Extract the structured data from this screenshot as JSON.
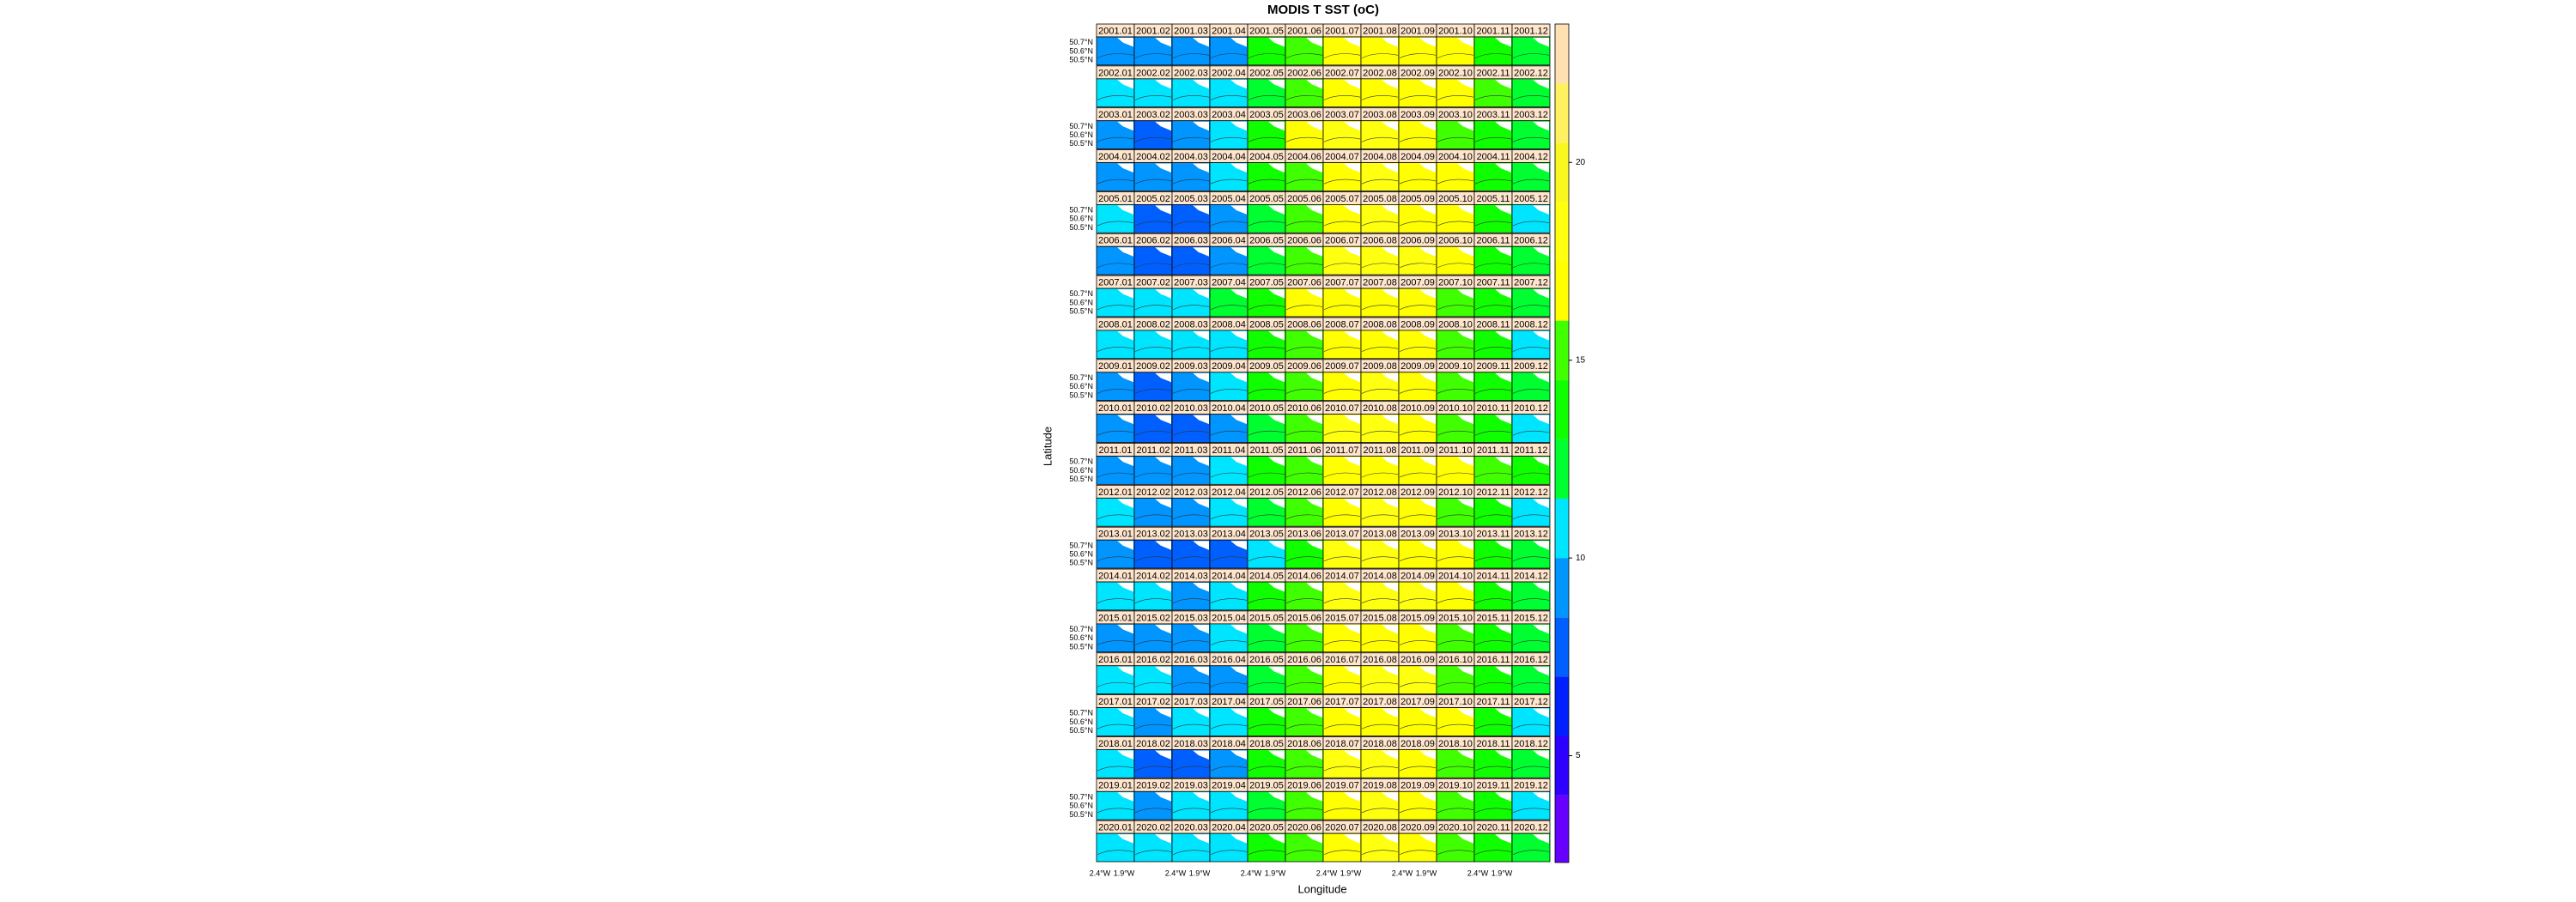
{
  "chart_data": {
    "type": "lattice",
    "title": "MODIS T SST (oC)",
    "x_label": "Longitude",
    "y_label": "Latitude",
    "lat_labels": [
      "50.7°N",
      "50.6°N",
      "50.5°N"
    ],
    "lon_labels": [
      "2.4°W",
      "1.9°W"
    ],
    "zlim": [
      2.3,
      23.5
    ],
    "zticks": [
      5,
      10,
      15,
      20
    ],
    "breaks": [
      2.3,
      4,
      5.5,
      7,
      8.5,
      10,
      11.5,
      13,
      14.5,
      16,
      17.5,
      19,
      20.5,
      22,
      23.5
    ],
    "colors": [
      "#6600ff",
      "#2e00ff",
      "#0020ff",
      "#0060ff",
      "#0095ff",
      "#00e5ff",
      "#00ff30",
      "#10ff00",
      "#40ff00",
      "#ffff00",
      "#ffff10",
      "#f8f820",
      "#fff060",
      "#ffe0b0"
    ],
    "panels": [
      {
        "labels": [
          "2001.01",
          "2001.02",
          "2001.03",
          "2001.04",
          "2001.05",
          "2001.06",
          "2001.07",
          "2001.08",
          "2001.09",
          "2001.10",
          "2001.11",
          "2001.12"
        ],
        "values": [
          9.2,
          8.6,
          8.8,
          9.4,
          13.0,
          15.2,
          16.8,
          17.4,
          17.0,
          16.2,
          13.4,
          12.6
        ]
      },
      {
        "labels": [
          "2002.01",
          "2002.02",
          "2002.03",
          "2002.04",
          "2002.05",
          "2002.06",
          "2002.07",
          "2002.08",
          "2002.09",
          "2002.10",
          "2002.11",
          "2002.12"
        ],
        "values": [
          10.4,
          10.6,
          10.2,
          10.6,
          12.6,
          14.8,
          16.6,
          17.2,
          17.0,
          16.4,
          14.6,
          12.8
        ]
      },
      {
        "labels": [
          "2003.01",
          "2003.02",
          "2003.03",
          "2003.04",
          "2003.05",
          "2003.06",
          "2003.07",
          "2003.08",
          "2003.09",
          "2003.10",
          "2003.11",
          "2003.12"
        ],
        "values": [
          9.0,
          7.8,
          8.6,
          10.2,
          13.2,
          16.2,
          17.8,
          18.6,
          17.2,
          15.4,
          14.0,
          11.8
        ]
      },
      {
        "labels": [
          "2004.01",
          "2004.02",
          "2004.03",
          "2004.04",
          "2004.05",
          "2004.06",
          "2004.07",
          "2004.08",
          "2004.09",
          "2004.10",
          "2004.11",
          "2004.12"
        ],
        "values": [
          9.6,
          9.2,
          9.0,
          10.4,
          13.0,
          15.6,
          16.8,
          17.8,
          17.4,
          16.0,
          13.6,
          12.0
        ]
      },
      {
        "labels": [
          "2005.01",
          "2005.02",
          "2005.03",
          "2005.04",
          "2005.05",
          "2005.06",
          "2005.07",
          "2005.08",
          "2005.09",
          "2005.10",
          "2005.11",
          "2005.12"
        ],
        "values": [
          10.0,
          8.4,
          8.2,
          9.8,
          12.8,
          15.8,
          17.2,
          17.6,
          17.4,
          16.2,
          13.8,
          10.8
        ]
      },
      {
        "labels": [
          "2006.01",
          "2006.02",
          "2006.03",
          "2006.04",
          "2006.05",
          "2006.06",
          "2006.07",
          "2006.08",
          "2006.09",
          "2006.10",
          "2006.11",
          "2006.12"
        ],
        "values": [
          8.8,
          7.6,
          7.4,
          8.6,
          12.6,
          15.4,
          18.4,
          17.6,
          18.0,
          16.8,
          14.2,
          12.6
        ]
      },
      {
        "labels": [
          "2007.01",
          "2007.02",
          "2007.03",
          "2007.04",
          "2007.05",
          "2007.06",
          "2007.07",
          "2007.08",
          "2007.09",
          "2007.10",
          "2007.11",
          "2007.12"
        ],
        "values": [
          11.4,
          10.6,
          10.4,
          11.6,
          13.8,
          16.0,
          16.6,
          17.0,
          16.8,
          15.8,
          13.4,
          11.8
        ]
      },
      {
        "labels": [
          "2008.01",
          "2008.02",
          "2008.03",
          "2008.04",
          "2008.05",
          "2008.06",
          "2008.07",
          "2008.08",
          "2008.09",
          "2008.10",
          "2008.11",
          "2008.12"
        ],
        "values": [
          10.8,
          10.4,
          10.0,
          10.4,
          13.6,
          15.4,
          16.8,
          17.4,
          17.0,
          15.6,
          13.2,
          10.6
        ]
      },
      {
        "labels": [
          "2009.01",
          "2009.02",
          "2009.03",
          "2009.04",
          "2009.05",
          "2009.06",
          "2009.07",
          "2009.08",
          "2009.09",
          "2009.10",
          "2009.11",
          "2009.12"
        ],
        "values": [
          9.0,
          8.2,
          8.6,
          10.0,
          13.0,
          15.6,
          17.2,
          17.6,
          17.4,
          15.8,
          14.0,
          11.6
        ]
      },
      {
        "labels": [
          "2010.01",
          "2010.02",
          "2010.03",
          "2010.04",
          "2010.05",
          "2010.06",
          "2010.07",
          "2010.08",
          "2010.09",
          "2010.10",
          "2010.11",
          "2010.12"
        ],
        "values": [
          8.6,
          7.8,
          7.6,
          9.4,
          12.2,
          15.6,
          17.6,
          17.6,
          17.2,
          15.8,
          13.2,
          10.2
        ]
      },
      {
        "labels": [
          "2011.01",
          "2011.02",
          "2011.03",
          "2011.04",
          "2011.05",
          "2011.06",
          "2011.07",
          "2011.08",
          "2011.09",
          "2011.10",
          "2011.11",
          "2011.12"
        ],
        "values": [
          9.2,
          9.4,
          9.0,
          11.2,
          13.4,
          15.4,
          16.6,
          17.2,
          17.2,
          16.4,
          14.6,
          13.2
        ]
      },
      {
        "labels": [
          "2012.01",
          "2012.02",
          "2012.03",
          "2012.04",
          "2012.05",
          "2012.06",
          "2012.07",
          "2012.08",
          "2012.09",
          "2012.10",
          "2012.11",
          "2012.12"
        ],
        "values": [
          10.6,
          9.6,
          9.8,
          10.4,
          12.8,
          14.8,
          16.4,
          17.6,
          17.0,
          15.6,
          13.6,
          11.4
        ]
      },
      {
        "labels": [
          "2013.01",
          "2013.02",
          "2013.03",
          "2013.04",
          "2013.05",
          "2013.06",
          "2013.07",
          "2013.08",
          "2013.09",
          "2013.10",
          "2013.11",
          "2013.12"
        ],
        "values": [
          9.2,
          8.4,
          7.4,
          8.0,
          11.4,
          14.4,
          17.8,
          18.2,
          17.0,
          16.0,
          13.4,
          11.8
        ]
      },
      {
        "labels": [
          "2014.01",
          "2014.02",
          "2014.03",
          "2014.04",
          "2014.05",
          "2014.06",
          "2014.07",
          "2014.08",
          "2014.09",
          "2014.10",
          "2014.11",
          "2014.12"
        ],
        "values": [
          10.6,
          10.2,
          9.8,
          11.4,
          13.4,
          15.6,
          17.6,
          17.6,
          17.8,
          16.8,
          14.4,
          12.6
        ]
      },
      {
        "labels": [
          "2015.01",
          "2015.02",
          "2015.03",
          "2015.04",
          "2015.05",
          "2015.06",
          "2015.07",
          "2015.08",
          "2015.09",
          "2015.10",
          "2015.11",
          "2015.12"
        ],
        "values": [
          9.8,
          8.8,
          8.8,
          10.2,
          12.6,
          14.6,
          16.6,
          17.4,
          16.6,
          15.6,
          14.4,
          12.8
        ]
      },
      {
        "labels": [
          "2016.01",
          "2016.02",
          "2016.03",
          "2016.04",
          "2016.05",
          "2016.06",
          "2016.07",
          "2016.08",
          "2016.09",
          "2016.10",
          "2016.11",
          "2016.12"
        ],
        "values": [
          11.4,
          10.6,
          9.4,
          9.8,
          12.8,
          15.4,
          16.8,
          17.6,
          17.8,
          15.6,
          13.2,
          12.2
        ]
      },
      {
        "labels": [
          "2017.01",
          "2017.02",
          "2017.03",
          "2017.04",
          "2017.05",
          "2017.06",
          "2017.07",
          "2017.08",
          "2017.09",
          "2017.10",
          "2017.11",
          "2017.12"
        ],
        "values": [
          10.2,
          9.4,
          10.2,
          10.8,
          13.4,
          15.6,
          16.8,
          17.2,
          16.8,
          16.2,
          13.4,
          11.4
        ]
      },
      {
        "labels": [
          "2018.01",
          "2018.02",
          "2018.03",
          "2018.04",
          "2018.05",
          "2018.06",
          "2018.07",
          "2018.08",
          "2018.09",
          "2018.10",
          "2018.11",
          "2018.12"
        ],
        "values": [
          10.0,
          8.4,
          7.6,
          9.6,
          13.0,
          15.8,
          18.0,
          18.2,
          17.2,
          15.6,
          13.6,
          12.4
        ]
      },
      {
        "labels": [
          "2019.01",
          "2019.02",
          "2019.03",
          "2019.04",
          "2019.05",
          "2019.06",
          "2019.07",
          "2019.08",
          "2019.09",
          "2019.10",
          "2019.11",
          "2019.12"
        ],
        "values": [
          10.4,
          9.6,
          10.2,
          11.2,
          12.8,
          14.8,
          17.2,
          17.8,
          17.4,
          15.8,
          13.4,
          11.4
        ]
      },
      {
        "labels": [
          "2020.01",
          "2020.02",
          "2020.03",
          "2020.04",
          "2020.05",
          "2020.06",
          "2020.07",
          "2020.08",
          "2020.09",
          "2020.10",
          "2020.11",
          "2020.12"
        ],
        "values": [
          10.6,
          10.4,
          10.0,
          11.0,
          13.6,
          15.8,
          16.8,
          17.6,
          17.4,
          15.8,
          14.4,
          12.4
        ]
      }
    ]
  }
}
